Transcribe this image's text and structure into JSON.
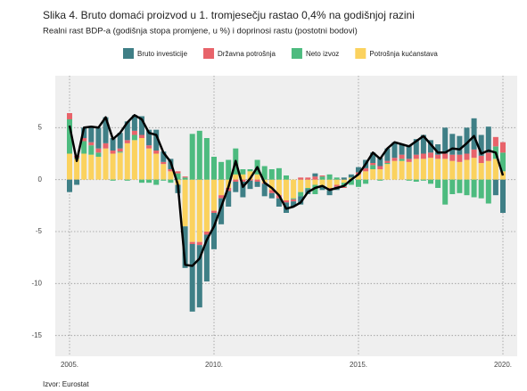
{
  "chart_data": {
    "type": "bar",
    "title": "Slika 4. Bruto domaći proizvod u 1. tromjesečju rastao 0,4% na godišnjoj razini",
    "subtitle": "Realni rast BDP-a (godišnja stopa promjene, u %) i doprinosi rastu (postotni bodovi)",
    "source": "Izvor: Eurostat",
    "stacked": true,
    "grid": true,
    "legend": "top",
    "categories": [
      "2005.",
      null,
      null,
      null,
      null,
      null,
      null,
      null,
      null,
      null,
      null,
      null,
      null,
      null,
      null,
      null,
      null,
      null,
      null,
      null,
      "2010.",
      null,
      null,
      null,
      null,
      null,
      null,
      null,
      null,
      null,
      null,
      null,
      null,
      null,
      null,
      null,
      null,
      null,
      null,
      null,
      "2015.",
      null,
      null,
      null,
      null,
      null,
      null,
      null,
      null,
      null,
      null,
      null,
      null,
      null,
      null,
      null,
      null,
      null,
      null,
      null,
      "2020."
    ],
    "series": [
      {
        "name": "Bruto investicije",
        "color": "#3f7f86",
        "values": [
          -1.2,
          -0.5,
          1.0,
          1.5,
          2.0,
          2.5,
          1.2,
          1.5,
          1.8,
          1.5,
          1.8,
          1.5,
          2.0,
          1.0,
          1.0,
          -0.8,
          -4.0,
          -6.5,
          -6.0,
          -4.5,
          -3.5,
          -2.5,
          -1.5,
          -1.0,
          -1.5,
          -0.8,
          -0.5,
          -1.2,
          -0.5,
          -0.8,
          -1.0,
          -0.5,
          -0.8,
          -0.5,
          0.3,
          -0.4,
          -0.5,
          -0.3,
          0.2,
          0.3,
          0.5,
          0.8,
          1.0,
          0.8,
          1.2,
          1.5,
          1.0,
          1.3,
          1.5,
          1.8,
          1.2,
          1.0,
          2.5,
          2.0,
          1.8,
          2.5,
          3.0,
          2.0,
          2.5,
          -1.5,
          -3.2
        ]
      },
      {
        "name": "Državna potrošnja",
        "color": "#e8636a",
        "values": [
          0.6,
          0.2,
          0.3,
          0.3,
          0.4,
          0.5,
          0.3,
          0.3,
          0.3,
          0.4,
          0.3,
          0.3,
          0.3,
          0.2,
          0.2,
          0.2,
          0.1,
          -0.2,
          -0.3,
          -0.3,
          -0.2,
          -0.3,
          -0.3,
          -0.2,
          -0.2,
          -0.1,
          -0.2,
          -0.1,
          -0.3,
          -0.3,
          -0.2,
          -0.2,
          0.2,
          0.2,
          0.3,
          0.1,
          -0.2,
          -0.2,
          -0.1,
          0.0,
          0.2,
          0.3,
          0.2,
          0.3,
          0.2,
          0.3,
          0.4,
          0.3,
          0.4,
          0.5,
          0.5,
          0.4,
          0.5,
          0.6,
          0.7,
          0.6,
          0.8,
          0.7,
          0.8,
          0.9,
          1.0
        ]
      },
      {
        "name": "Neto izvoz",
        "color": "#4dbb7f",
        "values": [
          3.3,
          0.1,
          1.2,
          0.9,
          0.4,
          0.0,
          -0.1,
          0.1,
          -0.1,
          0.5,
          -0.3,
          -0.3,
          -0.5,
          -0.1,
          -0.3,
          0.6,
          0.2,
          4.4,
          4.7,
          4.0,
          2.2,
          1.7,
          1.9,
          2.5,
          0.5,
          0.2,
          1.4,
          1.3,
          1.0,
          1.1,
          0.4,
          -0.1,
          -0.4,
          -0.1,
          -0.9,
          0.3,
          0.5,
          0.2,
          -0.4,
          -0.5,
          -0.7,
          -0.4,
          0.4,
          -0.1,
          0.1,
          0.0,
          0.2,
          -0.1,
          -0.2,
          -0.1,
          -0.4,
          -0.8,
          -2.4,
          -1.4,
          -1.3,
          -1.5,
          -1.7,
          -1.8,
          -2.3,
          1.2,
          1.8
        ]
      },
      {
        "name": "Potrošnja kućanstava",
        "color": "#fbd25e",
        "values": [
          2.5,
          2.0,
          2.5,
          2.4,
          2.2,
          3.0,
          2.5,
          2.6,
          3.5,
          3.8,
          4.0,
          3.0,
          2.5,
          1.5,
          0.8,
          -0.5,
          -4.5,
          -6.0,
          -6.0,
          -5.0,
          -3.0,
          -1.5,
          -0.8,
          0.5,
          0.5,
          0.8,
          0.5,
          -0.3,
          -1.0,
          -1.5,
          -2.0,
          -1.8,
          -1.2,
          -0.8,
          -0.5,
          -0.6,
          -0.8,
          -0.5,
          -0.3,
          0.2,
          0.5,
          0.8,
          1.0,
          1.0,
          1.5,
          1.8,
          1.8,
          1.7,
          2.0,
          2.0,
          2.1,
          2.0,
          2.0,
          1.8,
          1.7,
          1.9,
          2.1,
          1.6,
          1.8,
          2.0,
          0.8
        ]
      }
    ],
    "line": {
      "color": "#000000",
      "values": [
        5.2,
        1.8,
        5.0,
        5.1,
        5.0,
        6.0,
        3.9,
        4.5,
        5.5,
        6.2,
        5.8,
        4.5,
        4.3,
        2.6,
        1.7,
        -0.5,
        -8.2,
        -8.3,
        -7.6,
        -5.8,
        -4.5,
        -2.6,
        -0.7,
        1.8,
        -0.7,
        0.1,
        1.2,
        -0.3,
        -0.8,
        -1.5,
        -2.8,
        -2.6,
        -2.2,
        -1.2,
        -0.8,
        -0.6,
        -1.0,
        -0.8,
        -0.6,
        0.0,
        0.5,
        1.5,
        2.6,
        2.0,
        3.0,
        3.6,
        3.4,
        3.2,
        3.7,
        4.2,
        3.4,
        2.6,
        2.6,
        3.0,
        2.9,
        3.5,
        4.2,
        2.5,
        2.8,
        2.6,
        0.4
      ]
    },
    "ylim": [
      -17,
      10
    ],
    "yticks": [
      5,
      0,
      -5,
      -10,
      -15
    ]
  }
}
